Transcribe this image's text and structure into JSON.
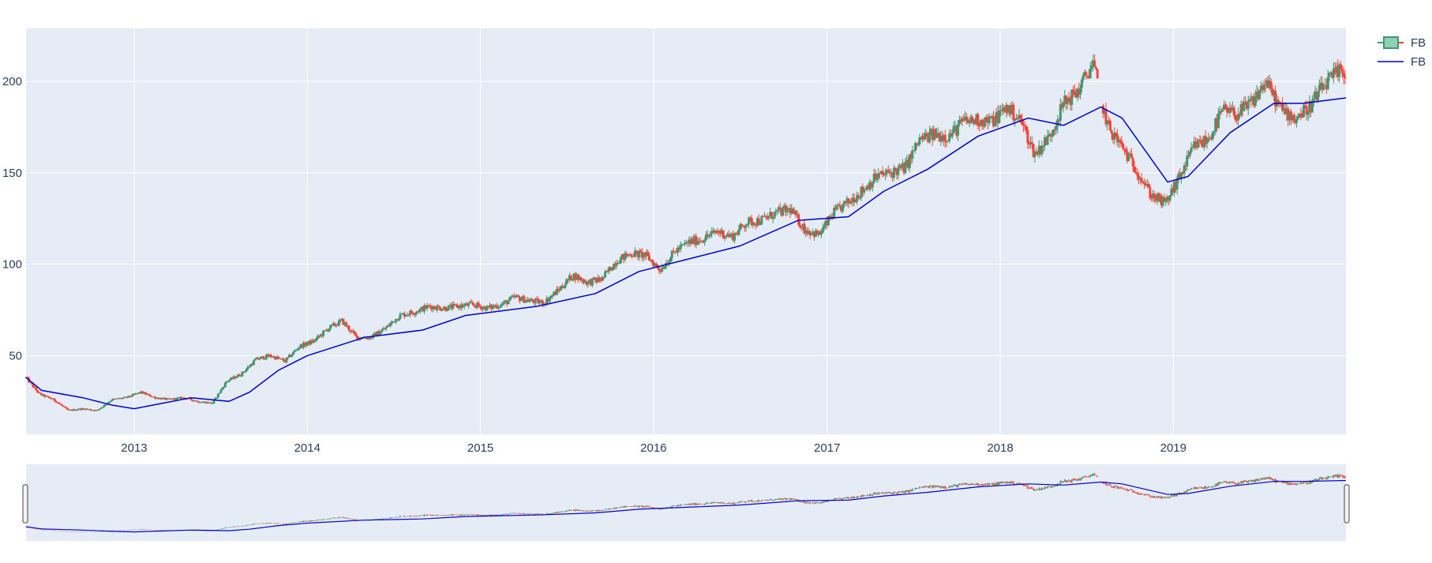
{
  "chart_data": {
    "type": "candlestick",
    "x_ticks": [
      "2013",
      "2014",
      "2015",
      "2016",
      "2017",
      "2018",
      "2019"
    ],
    "y_ticks": [
      50,
      100,
      150,
      200
    ],
    "ylim": [
      7,
      229
    ],
    "xlim": [
      "2012-05-18",
      "2019-12-31"
    ],
    "grid": true,
    "legend_position": "top-right",
    "range_slider": true,
    "series": [
      {
        "name": "FB",
        "kind": "candlestick",
        "increasing_color": "#3d9970",
        "decreasing_color": "#ff4136",
        "monthly_close": [
          [
            "2012-05-18",
            38
          ],
          [
            "2012-06-15",
            29
          ],
          [
            "2012-07-15",
            26
          ],
          [
            "2012-08-15",
            20
          ],
          [
            "2012-09-15",
            21
          ],
          [
            "2012-10-15",
            20
          ],
          [
            "2012-11-15",
            26
          ],
          [
            "2012-12-15",
            27
          ],
          [
            "2013-01-15",
            30
          ],
          [
            "2013-02-15",
            27
          ],
          [
            "2013-03-15",
            26
          ],
          [
            "2013-04-15",
            27
          ],
          [
            "2013-05-15",
            25
          ],
          [
            "2013-06-15",
            24
          ],
          [
            "2013-07-15",
            36
          ],
          [
            "2013-08-15",
            40
          ],
          [
            "2013-09-15",
            48
          ],
          [
            "2013-10-15",
            50
          ],
          [
            "2013-11-15",
            47
          ],
          [
            "2013-12-15",
            55
          ],
          [
            "2014-01-15",
            58
          ],
          [
            "2014-02-15",
            65
          ],
          [
            "2014-03-15",
            69
          ],
          [
            "2014-04-15",
            60
          ],
          [
            "2014-05-15",
            60
          ],
          [
            "2014-06-15",
            65
          ],
          [
            "2014-07-15",
            72
          ],
          [
            "2014-08-15",
            74
          ],
          [
            "2014-09-15",
            77
          ],
          [
            "2014-10-15",
            76
          ],
          [
            "2014-11-15",
            77
          ],
          [
            "2014-12-15",
            78
          ],
          [
            "2015-01-15",
            76
          ],
          [
            "2015-02-15",
            78
          ],
          [
            "2015-03-15",
            82
          ],
          [
            "2015-04-15",
            80
          ],
          [
            "2015-05-15",
            79
          ],
          [
            "2015-06-15",
            86
          ],
          [
            "2015-07-15",
            94
          ],
          [
            "2015-08-15",
            90
          ],
          [
            "2015-09-15",
            92
          ],
          [
            "2015-10-15",
            102
          ],
          [
            "2015-11-15",
            106
          ],
          [
            "2015-12-15",
            105
          ],
          [
            "2016-01-15",
            97
          ],
          [
            "2016-02-15",
            107
          ],
          [
            "2016-03-15",
            112
          ],
          [
            "2016-04-15",
            114
          ],
          [
            "2016-05-15",
            118
          ],
          [
            "2016-06-15",
            115
          ],
          [
            "2016-07-15",
            123
          ],
          [
            "2016-08-15",
            124
          ],
          [
            "2016-09-15",
            128
          ],
          [
            "2016-10-15",
            130
          ],
          [
            "2016-11-15",
            119
          ],
          [
            "2016-12-15",
            116
          ],
          [
            "2017-01-15",
            128
          ],
          [
            "2017-02-15",
            134
          ],
          [
            "2017-03-15",
            140
          ],
          [
            "2017-04-15",
            148
          ],
          [
            "2017-05-15",
            150
          ],
          [
            "2017-06-15",
            153
          ],
          [
            "2017-07-15",
            168
          ],
          [
            "2017-08-15",
            171
          ],
          [
            "2017-09-15",
            170
          ],
          [
            "2017-10-15",
            178
          ],
          [
            "2017-11-15",
            179
          ],
          [
            "2017-12-15",
            178
          ],
          [
            "2018-01-15",
            186
          ],
          [
            "2018-02-15",
            178
          ],
          [
            "2018-03-15",
            160
          ],
          [
            "2018-04-15",
            170
          ],
          [
            "2018-05-15",
            188
          ],
          [
            "2018-06-15",
            195
          ],
          [
            "2018-07-15",
            210
          ],
          [
            "2018-08-15",
            176
          ],
          [
            "2018-09-15",
            164
          ],
          [
            "2018-10-15",
            152
          ],
          [
            "2018-11-15",
            138
          ],
          [
            "2018-12-15",
            133
          ],
          [
            "2019-01-15",
            148
          ],
          [
            "2019-02-15",
            165
          ],
          [
            "2019-03-15",
            168
          ],
          [
            "2019-04-15",
            184
          ],
          [
            "2019-05-15",
            182
          ],
          [
            "2019-06-15",
            188
          ],
          [
            "2019-07-15",
            200
          ],
          [
            "2019-08-15",
            185
          ],
          [
            "2019-09-15",
            180
          ],
          [
            "2019-10-15",
            186
          ],
          [
            "2019-11-15",
            198
          ],
          [
            "2019-12-15",
            205
          ]
        ]
      },
      {
        "name": "FB",
        "kind": "line",
        "color": "#0000cc",
        "points": [
          [
            "2012-05-18",
            38
          ],
          [
            "2012-06-20",
            31
          ],
          [
            "2012-09-15",
            27
          ],
          [
            "2012-11-15",
            23
          ],
          [
            "2013-01-01",
            21
          ],
          [
            "2013-05-01",
            27
          ],
          [
            "2013-07-20",
            25
          ],
          [
            "2013-09-01",
            30
          ],
          [
            "2013-11-01",
            42
          ],
          [
            "2014-01-01",
            50
          ],
          [
            "2014-05-01",
            60
          ],
          [
            "2014-09-01",
            64
          ],
          [
            "2014-12-01",
            72
          ],
          [
            "2015-05-01",
            77
          ],
          [
            "2015-09-01",
            84
          ],
          [
            "2015-12-01",
            96
          ],
          [
            "2016-04-01",
            104
          ],
          [
            "2016-07-01",
            110
          ],
          [
            "2016-11-01",
            124
          ],
          [
            "2017-02-15",
            126
          ],
          [
            "2017-05-01",
            140
          ],
          [
            "2017-08-01",
            152
          ],
          [
            "2017-11-15",
            170
          ],
          [
            "2018-03-01",
            180
          ],
          [
            "2018-05-15",
            176
          ],
          [
            "2018-08-01",
            186
          ],
          [
            "2018-09-15",
            180
          ],
          [
            "2018-12-20",
            145
          ],
          [
            "2019-02-01",
            148
          ],
          [
            "2019-05-01",
            172
          ],
          [
            "2019-08-01",
            188
          ],
          [
            "2019-10-01",
            188
          ],
          [
            "2019-12-31",
            191
          ]
        ]
      }
    ]
  }
}
